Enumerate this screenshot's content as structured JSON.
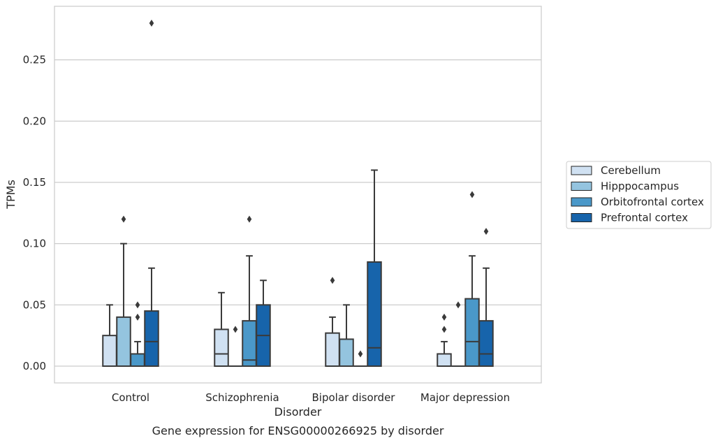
{
  "chart_data": {
    "type": "box",
    "title": "",
    "caption": "Gene expression for ENSG00000266925 by disorder",
    "xlabel": "Disorder",
    "ylabel": "TPMs",
    "ylim": [
      -0.014,
      0.294
    ],
    "yticks": [
      0.0,
      0.05,
      0.1,
      0.15,
      0.2,
      0.25
    ],
    "ytick_labels": [
      "0.00",
      "0.05",
      "0.10",
      "0.15",
      "0.20",
      "0.25"
    ],
    "grid": true,
    "legend_position": "right",
    "categories": [
      "Control",
      "Schizophrenia",
      "Bipolar disorder",
      "Major depression"
    ],
    "series": [
      {
        "name": "Cerebellum",
        "color": "#d0e1f2",
        "boxes": [
          {
            "whislo": 0,
            "q1": 0,
            "med": 0,
            "q3": 0.025,
            "whishi": 0.05,
            "fliers": []
          },
          {
            "whislo": 0,
            "q1": 0,
            "med": 0.01,
            "q3": 0.03,
            "whishi": 0.06,
            "fliers": []
          },
          {
            "whislo": 0,
            "q1": 0,
            "med": 0,
            "q3": 0.027,
            "whishi": 0.04,
            "fliers": [
              0.07
            ]
          },
          {
            "whislo": 0,
            "q1": 0,
            "med": 0,
            "q3": 0.01,
            "whishi": 0.02,
            "fliers": [
              0.03,
              0.04
            ]
          }
        ]
      },
      {
        "name": "Hipppocampus",
        "color": "#94c4df",
        "boxes": [
          {
            "whislo": 0,
            "q1": 0,
            "med": 0,
            "q3": 0.04,
            "whishi": 0.1,
            "fliers": [
              0.12
            ]
          },
          {
            "whislo": 0,
            "q1": 0,
            "med": 0,
            "q3": 0,
            "whishi": 0,
            "fliers": [
              0.03
            ]
          },
          {
            "whislo": 0,
            "q1": 0,
            "med": 0,
            "q3": 0.022,
            "whishi": 0.05,
            "fliers": []
          },
          {
            "whislo": 0,
            "q1": 0,
            "med": 0,
            "q3": 0,
            "whishi": 0,
            "fliers": [
              0.05
            ]
          }
        ]
      },
      {
        "name": "Orbitofrontal cortex",
        "color": "#4a98c9",
        "boxes": [
          {
            "whislo": 0,
            "q1": 0,
            "med": 0,
            "q3": 0.01,
            "whishi": 0.02,
            "fliers": [
              0.04,
              0.05
            ]
          },
          {
            "whislo": 0,
            "q1": 0,
            "med": 0.005,
            "q3": 0.037,
            "whishi": 0.09,
            "fliers": [
              0.12
            ]
          },
          {
            "whislo": 0,
            "q1": 0,
            "med": 0,
            "q3": 0,
            "whishi": 0,
            "fliers": [
              0.01
            ]
          },
          {
            "whislo": 0,
            "q1": 0,
            "med": 0.02,
            "q3": 0.055,
            "whishi": 0.09,
            "fliers": [
              0.14
            ]
          }
        ]
      },
      {
        "name": "Prefrontal cortex",
        "color": "#1764ab",
        "boxes": [
          {
            "whislo": 0,
            "q1": 0,
            "med": 0.02,
            "q3": 0.045,
            "whishi": 0.08,
            "fliers": [
              0.28
            ]
          },
          {
            "whislo": 0,
            "q1": 0,
            "med": 0.025,
            "q3": 0.05,
            "whishi": 0.07,
            "fliers": []
          },
          {
            "whislo": 0,
            "q1": 0,
            "med": 0.015,
            "q3": 0.085,
            "whishi": 0.16,
            "fliers": []
          },
          {
            "whislo": 0,
            "q1": 0,
            "med": 0.01,
            "q3": 0.037,
            "whishi": 0.08,
            "fliers": [
              0.11
            ]
          }
        ]
      }
    ]
  }
}
